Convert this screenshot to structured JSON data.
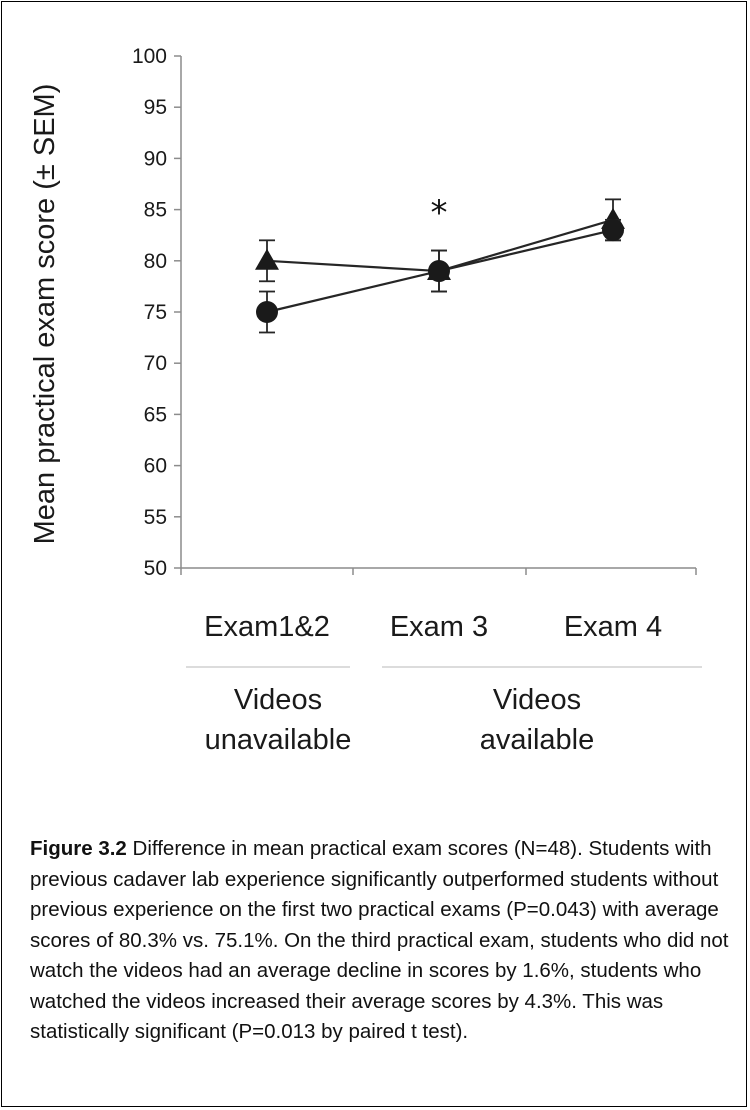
{
  "chart_data": {
    "type": "line",
    "ylabel": "Mean practical exam score (± SEM)",
    "ylim": [
      50,
      100
    ],
    "yticks": [
      50,
      55,
      60,
      65,
      70,
      75,
      80,
      85,
      90,
      95,
      100
    ],
    "categories": [
      "Exam1&2",
      "Exam 3",
      "Exam 4"
    ],
    "groups": [
      {
        "label_lines": [
          "Videos",
          "unavailable"
        ],
        "categories": [
          "Exam1&2"
        ]
      },
      {
        "label_lines": [
          "Videos",
          "available"
        ],
        "categories": [
          "Exam 3",
          "Exam 4"
        ]
      }
    ],
    "series": [
      {
        "marker": "triangle",
        "values": [
          80,
          79,
          84
        ],
        "errors": [
          2,
          2,
          2
        ]
      },
      {
        "marker": "circle",
        "values": [
          75,
          79,
          83
        ],
        "errors": [
          2,
          2,
          1
        ]
      }
    ],
    "annotations": [
      {
        "text": "*",
        "category": "Exam 3"
      }
    ],
    "grid": false,
    "colors": {
      "line": "#262626",
      "marker": "#1a1a1a",
      "axis": "#8c8c8c"
    }
  },
  "caption": {
    "label": "Figure 3.2",
    "text": " Difference in mean practical exam scores (N=48). Students with previous cadaver lab experience significantly outperformed students without previous experience on the first two practical exams (P=0.043) with average scores of 80.3% vs. 75.1%. On the third practical exam, students who did not watch the videos had an average decline in scores by 1.6%, students who watched the videos increased their average scores by 4.3%. This was statistically significant (P=0.013 by paired t test)."
  }
}
